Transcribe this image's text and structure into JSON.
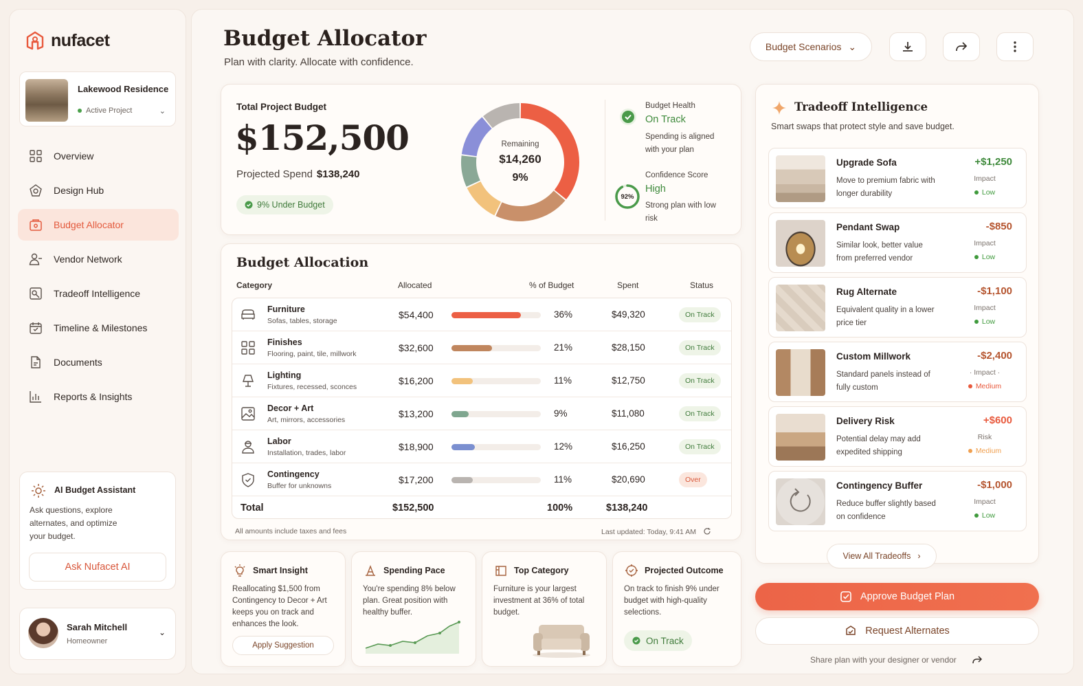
{
  "brand": {
    "name": "nufacet",
    "accent": "#e8593c",
    "green": "#3f8a3c"
  },
  "project": {
    "name": "Lakewood Residence",
    "status": "Active Project"
  },
  "nav": [
    {
      "label": "Overview",
      "icon": "grid-icon"
    },
    {
      "label": "Design Hub",
      "icon": "design-hub-icon"
    },
    {
      "label": "Budget Allocator",
      "icon": "wallet-icon",
      "active": true
    },
    {
      "label": "Vendor Network",
      "icon": "users-icon"
    },
    {
      "label": "Tradeoff Intelligence",
      "icon": "tradeoff-icon"
    },
    {
      "label": "Timeline & Milestones",
      "icon": "calendar-icon"
    },
    {
      "label": "Documents",
      "icon": "document-icon"
    },
    {
      "label": "Reports & Insights",
      "icon": "bar-chart-icon"
    }
  ],
  "assistant": {
    "title": "AI Budget Assistant",
    "desc": "Ask questions, explore alternates, and optimize your budget.",
    "button": "Ask Nufacet AI"
  },
  "user": {
    "name": "Sarah Mitchell",
    "role": "Homeowner"
  },
  "header": {
    "title": "Budget Allocator",
    "subtitle": "Plan with clarity. Allocate with confidence.",
    "scenarios": "Budget Scenarios"
  },
  "summary": {
    "label": "Total Project Budget",
    "total": "$152,500",
    "projected_label": "Projected Spend",
    "projected": "$138,240",
    "under": "9% Under Budget",
    "remaining_label": "Remaining",
    "remaining": "$14,260",
    "remaining_pct": "9%",
    "health_label": "Budget Health",
    "health": "On Track",
    "health_desc": "Spending is aligned with your plan",
    "confidence_label": "Confidence Score",
    "confidence": "High",
    "confidence_pct": "92%",
    "confidence_value": 0.92,
    "confidence_desc": "Strong plan with low risk"
  },
  "allocation": {
    "title": "Budget Allocation",
    "headers": {
      "category": "Category",
      "allocated": "Allocated",
      "pct": "% of Budget",
      "spent": "Spent",
      "status": "Status"
    },
    "rows": [
      {
        "name": "Furniture",
        "sub": "Sofas, tables, storage",
        "allocated": "$54,400",
        "pct": "36%",
        "pct_value": 36,
        "spent": "$49,320",
        "status": "On Track",
        "color": "#ec5f44",
        "icon": "sofa-icon"
      },
      {
        "name": "Finishes",
        "sub": "Flooring, paint, tile, millwork",
        "allocated": "$32,600",
        "pct": "21%",
        "pct_value": 21,
        "spent": "$28,150",
        "status": "On Track",
        "color": "#c0865e",
        "icon": "finishes-icon"
      },
      {
        "name": "Lighting",
        "sub": "Fixtures, recessed, sconces",
        "allocated": "$16,200",
        "pct": "11%",
        "pct_value": 11,
        "spent": "$12,750",
        "status": "On Track",
        "color": "#f2c27c",
        "icon": "lamp-icon"
      },
      {
        "name": "Decor + Art",
        "sub": "Art, mirrors, accessories",
        "allocated": "$13,200",
        "pct": "9%",
        "pct_value": 9,
        "spent": "$11,080",
        "status": "On Track",
        "color": "#7fa68f",
        "icon": "picture-icon"
      },
      {
        "name": "Labor",
        "sub": "Installation, trades, labor",
        "allocated": "$18,900",
        "pct": "12%",
        "pct_value": 12,
        "spent": "$16,250",
        "status": "On Track",
        "color": "#7b8fd0",
        "icon": "worker-icon"
      },
      {
        "name": "Contingency",
        "sub": "Buffer for unknowns",
        "allocated": "$17,200",
        "pct": "11%",
        "pct_value": 11,
        "spent": "$20,690",
        "status": "Over",
        "color": "#b9b4b0",
        "icon": "shield-icon"
      }
    ],
    "total": {
      "label": "Total",
      "allocated": "$152,500",
      "pct": "100%",
      "spent": "$138,240"
    },
    "footnote": "All amounts include taxes and fees",
    "updated": "Last updated: Today, 9:41 AM"
  },
  "insights": [
    {
      "title": "Smart Insight",
      "text": "Reallocating $1,500 from Contingency to Decor + Art keeps you on track and enhances the look.",
      "button": "Apply Suggestion",
      "icon": "lightbulb-icon"
    },
    {
      "title": "Spending Pace",
      "text": "You're spending 8% below plan. Great position with healthy buffer.",
      "icon": "pace-icon"
    },
    {
      "title": "Top Category",
      "text": "Furniture is your largest investment at 36% of total budget.",
      "icon": "category-icon"
    },
    {
      "title": "Projected Outcome",
      "text": "On track to finish 9% under budget with high-quality selections.",
      "pill": "On Track",
      "icon": "outcome-icon"
    }
  ],
  "tradeoffs": {
    "title": "Tradeoff Intelligence",
    "subtitle": "Smart swaps that protect style and save budget.",
    "items": [
      {
        "name": "Upgrade Sofa",
        "desc": "Move to premium fabric with longer durability",
        "amount": "+$1,250",
        "impact_label": "Impact",
        "level": "Low",
        "amount_color": "#3f8a3c",
        "level_color": "#3f9a3c"
      },
      {
        "name": "Pendant Swap",
        "desc": "Similar look, better value from preferred vendor",
        "amount": "-$850",
        "impact_label": "Impact",
        "level": "Low",
        "amount_color": "#b5552f",
        "level_color": "#3f9a3c"
      },
      {
        "name": "Rug Alternate",
        "desc": "Equivalent quality in a lower price tier",
        "amount": "-$1,100",
        "impact_label": "Impact",
        "level": "Low",
        "amount_color": "#b5552f",
        "level_color": "#3f9a3c"
      },
      {
        "name": "Custom Millwork",
        "desc": "Standard panels instead of fully custom",
        "amount": "-$2,400",
        "impact_label": "· Impact ·",
        "level": "Medium",
        "amount_color": "#b5552f",
        "level_color": "#e8593c"
      },
      {
        "name": "Delivery Risk",
        "desc": "Potential delay may add expedited shipping",
        "amount": "+$600",
        "impact_label": "Risk",
        "level": "Medium",
        "amount_color": "#e8593c",
        "level_color": "#f0a050"
      },
      {
        "name": "Contingency Buffer",
        "desc": "Reduce buffer slightly based on confidence",
        "amount": "-$1,000",
        "impact_label": "Impact",
        "level": "Low",
        "amount_color": "#b5552f",
        "level_color": "#3f9a3c"
      }
    ],
    "view_all": "View All Tradeoffs"
  },
  "actions": {
    "approve": "Approve Budget Plan",
    "request": "Request Alternates",
    "share": "Share plan with your designer or vendor"
  },
  "chart_data": {
    "type": "pie",
    "categories": [
      "Furniture",
      "Finishes",
      "Lighting",
      "Decor + Art",
      "Labor",
      "Contingency"
    ],
    "values": [
      36,
      21,
      11,
      9,
      12,
      11
    ],
    "colors": [
      "#ec5f44",
      "#c9906a",
      "#f2c27c",
      "#8aa896",
      "#8a8fd8",
      "#b9b4b0"
    ]
  }
}
